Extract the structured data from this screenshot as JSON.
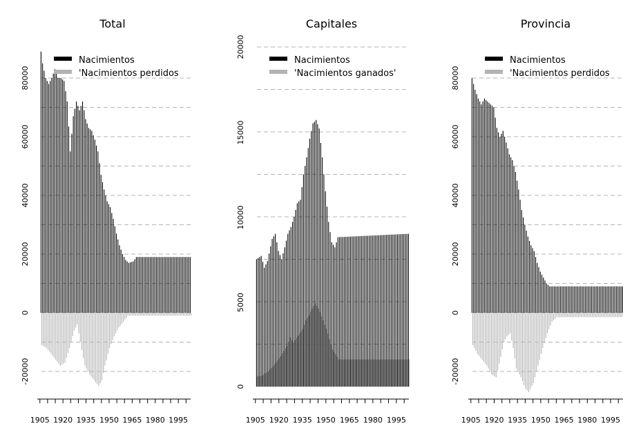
{
  "chart_data": [
    {
      "type": "bar",
      "title": "Total",
      "xlabel": "",
      "ylabel": "",
      "x_range": [
        1906,
        2003
      ],
      "ylim": [
        -30000,
        85000
      ],
      "grid": "horizontal dashed",
      "xticks": [
        "1905",
        "1920",
        "1935",
        "1950",
        "1965",
        "1980",
        "1995"
      ],
      "yticks": [
        "-20000",
        "0",
        "20000",
        "40000",
        "60000",
        "80000"
      ],
      "legend": {
        "position": "top-left",
        "entries": [
          "Nacimientos",
          "'Nacimientos perdidos"
        ]
      },
      "series": [
        {
          "name": "Nacimientos",
          "color": "#000000",
          "keyframes": [
            [
              1906,
              89000
            ],
            [
              1907,
              85000
            ],
            [
              1909,
              80000
            ],
            [
              1911,
              78000
            ],
            [
              1913,
              80000
            ],
            [
              1915,
              83000
            ],
            [
              1917,
              80000
            ],
            [
              1919,
              80000
            ],
            [
              1921,
              79000
            ],
            [
              1923,
              72000
            ],
            [
              1925,
              55000
            ],
            [
              1927,
              67000
            ],
            [
              1929,
              72000
            ],
            [
              1931,
              69000
            ],
            [
              1933,
              72000
            ],
            [
              1935,
              66000
            ],
            [
              1937,
              63000
            ],
            [
              1939,
              62000
            ],
            [
              1941,
              59000
            ],
            [
              1943,
              55000
            ],
            [
              1945,
              47000
            ],
            [
              1947,
              42000
            ],
            [
              1949,
              38000
            ],
            [
              1951,
              36000
            ],
            [
              1953,
              32000
            ],
            [
              1955,
              27000
            ],
            [
              1957,
              23000
            ],
            [
              1959,
              20000
            ],
            [
              1961,
              18000
            ],
            [
              1963,
              17000
            ],
            [
              1966,
              17500
            ],
            [
              1968,
              19000
            ],
            [
              2003,
              19000
            ]
          ]
        },
        {
          "name": "'Nacimientos perdidos",
          "color": "#b3b3b3",
          "keyframes": [
            [
              1906,
              -11000
            ],
            [
              1909,
              -12000
            ],
            [
              1912,
              -14000
            ],
            [
              1915,
              -16000
            ],
            [
              1918,
              -18000
            ],
            [
              1921,
              -17000
            ],
            [
              1924,
              -12000
            ],
            [
              1927,
              -6000
            ],
            [
              1929,
              -4000
            ],
            [
              1931,
              -10000
            ],
            [
              1934,
              -18000
            ],
            [
              1937,
              -21000
            ],
            [
              1940,
              -23000
            ],
            [
              1943,
              -25000
            ],
            [
              1945,
              -23000
            ],
            [
              1947,
              -18000
            ],
            [
              1950,
              -12000
            ],
            [
              1953,
              -8000
            ],
            [
              1956,
              -5000
            ],
            [
              1959,
              -3000
            ],
            [
              1962,
              -1000
            ],
            [
              2003,
              -1000
            ]
          ]
        }
      ]
    },
    {
      "type": "bar",
      "title": "Capitales",
      "xlabel": "",
      "ylabel": "",
      "x_range": [
        1906,
        2003
      ],
      "ylim": [
        0,
        20000
      ],
      "grid": "horizontal dashed",
      "xticks": [
        "1905",
        "1920",
        "1935",
        "1950",
        "1965",
        "1980",
        "1995"
      ],
      "yticks": [
        "0",
        "5000",
        "10000",
        "15000",
        "20000"
      ],
      "legend": {
        "position": "top-left",
        "entries": [
          "Nacimientos",
          "'Nacimientos ganados'"
        ]
      },
      "series": [
        {
          "name": "Nacimientos",
          "color": "#000000",
          "keyframes": [
            [
              1906,
              7500
            ],
            [
              1909,
              7700
            ],
            [
              1911,
              7000
            ],
            [
              1913,
              7400
            ],
            [
              1916,
              8700
            ],
            [
              1918,
              9000
            ],
            [
              1920,
              8000
            ],
            [
              1922,
              7500
            ],
            [
              1924,
              8200
            ],
            [
              1926,
              9000
            ],
            [
              1928,
              9400
            ],
            [
              1930,
              10000
            ],
            [
              1932,
              10800
            ],
            [
              1934,
              11000
            ],
            [
              1936,
              12500
            ],
            [
              1938,
              13500
            ],
            [
              1940,
              14600
            ],
            [
              1942,
              15500
            ],
            [
              1944,
              15700
            ],
            [
              1946,
              15200
            ],
            [
              1948,
              13500
            ],
            [
              1950,
              11500
            ],
            [
              1952,
              9700
            ],
            [
              1954,
              8500
            ],
            [
              1956,
              8200
            ],
            [
              1958,
              8800
            ],
            [
              2003,
              9000
            ]
          ]
        },
        {
          "name": "'Nacimientos ganados'",
          "color": "#b3b3b3",
          "keyframes": [
            [
              1906,
              600
            ],
            [
              1909,
              650
            ],
            [
              1913,
              900
            ],
            [
              1917,
              1300
            ],
            [
              1921,
              1800
            ],
            [
              1925,
              2400
            ],
            [
              1927,
              2900
            ],
            [
              1929,
              2600
            ],
            [
              1932,
              3000
            ],
            [
              1935,
              3400
            ],
            [
              1937,
              3900
            ],
            [
              1939,
              4200
            ],
            [
              1941,
              4600
            ],
            [
              1943,
              4900
            ],
            [
              1945,
              4600
            ],
            [
              1948,
              3900
            ],
            [
              1950,
              3400
            ],
            [
              1952,
              2800
            ],
            [
              1954,
              2200
            ],
            [
              1956,
              1900
            ],
            [
              1958,
              1600
            ],
            [
              2003,
              1600
            ]
          ]
        }
      ]
    },
    {
      "type": "bar",
      "title": "Provincia",
      "xlabel": "",
      "ylabel": "",
      "x_range": [
        1906,
        2003
      ],
      "ylim": [
        -30000,
        85000
      ],
      "grid": "horizontal dashed",
      "xticks": [
        "1905",
        "1920",
        "1935",
        "1950",
        "1965",
        "1980",
        "1995"
      ],
      "yticks": [
        "-20000",
        "0",
        "20000",
        "40000",
        "60000",
        "80000"
      ],
      "legend": {
        "position": "top-left",
        "entries": [
          "Nacimientos",
          "'Nacimientos perdidos"
        ]
      },
      "series": [
        {
          "name": "Nacimientos",
          "color": "#000000",
          "keyframes": [
            [
              1906,
              80000
            ],
            [
              1908,
              76000
            ],
            [
              1910,
              73000
            ],
            [
              1912,
              71000
            ],
            [
              1914,
              73000
            ],
            [
              1916,
              72000
            ],
            [
              1918,
              71000
            ],
            [
              1920,
              70000
            ],
            [
              1922,
              63000
            ],
            [
              1924,
              60000
            ],
            [
              1926,
              62000
            ],
            [
              1928,
              58000
            ],
            [
              1930,
              54000
            ],
            [
              1932,
              52000
            ],
            [
              1934,
              48000
            ],
            [
              1936,
              42000
            ],
            [
              1938,
              35000
            ],
            [
              1940,
              30000
            ],
            [
              1942,
              26000
            ],
            [
              1944,
              23000
            ],
            [
              1946,
              21000
            ],
            [
              1948,
              17000
            ],
            [
              1950,
              14000
            ],
            [
              1952,
              12000
            ],
            [
              1954,
              10000
            ],
            [
              1956,
              9000
            ],
            [
              2003,
              9000
            ]
          ]
        },
        {
          "name": "'Nacimientos perdidos",
          "color": "#b3b3b3",
          "keyframes": [
            [
              1906,
              -11000
            ],
            [
              1909,
              -14000
            ],
            [
              1912,
              -16000
            ],
            [
              1915,
              -18000
            ],
            [
              1918,
              -21000
            ],
            [
              1921,
              -22000
            ],
            [
              1924,
              -15000
            ],
            [
              1926,
              -10000
            ],
            [
              1928,
              -8000
            ],
            [
              1930,
              -7000
            ],
            [
              1932,
              -12000
            ],
            [
              1934,
              -19000
            ],
            [
              1937,
              -22000
            ],
            [
              1940,
              -26000
            ],
            [
              1942,
              -27000
            ],
            [
              1945,
              -24000
            ],
            [
              1948,
              -18000
            ],
            [
              1951,
              -12000
            ],
            [
              1954,
              -7000
            ],
            [
              1957,
              -3000
            ],
            [
              1960,
              -1500
            ],
            [
              2003,
              -1500
            ]
          ]
        }
      ]
    }
  ]
}
